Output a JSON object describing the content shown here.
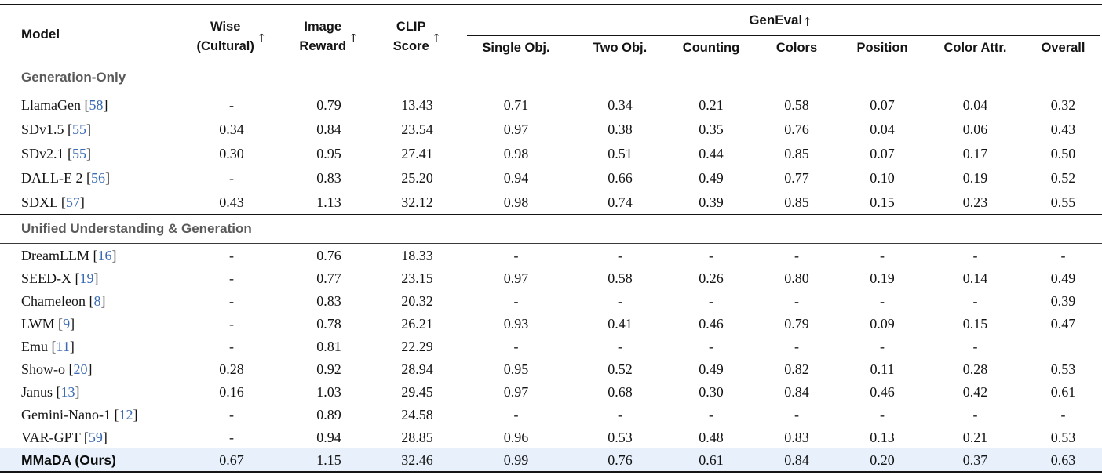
{
  "table": {
    "citation_brackets": [
      "[",
      "]"
    ],
    "header": {
      "model": "Model",
      "metrics": [
        {
          "line1": "Wise",
          "line2": "(Cultural)",
          "arrow": "↑"
        },
        {
          "line1": "Image",
          "line2": "Reward",
          "arrow": "↑"
        },
        {
          "line1": "CLIP",
          "line2": "Score",
          "arrow": "↑"
        }
      ],
      "group": {
        "label": "GenEval",
        "arrow": "↑"
      },
      "subcolumns": [
        "Single Obj.",
        "Two Obj.",
        "Counting",
        "Colors",
        "Position",
        "Color Attr.",
        "Overall"
      ]
    },
    "sections": [
      {
        "title": "Generation-Only",
        "rows": [
          {
            "model": "LlamaGen",
            "citation": "58",
            "values": [
              "-",
              "0.79",
              "13.43",
              "0.71",
              "0.34",
              "0.21",
              "0.58",
              "0.07",
              "0.04",
              "0.32"
            ]
          },
          {
            "model": "SDv1.5",
            "citation": "55",
            "values": [
              "0.34",
              "0.84",
              "23.54",
              "0.97",
              "0.38",
              "0.35",
              "0.76",
              "0.04",
              "0.06",
              "0.43"
            ]
          },
          {
            "model": "SDv2.1",
            "citation": "55",
            "values": [
              "0.30",
              "0.95",
              "27.41",
              "0.98",
              "0.51",
              "0.44",
              "0.85",
              "0.07",
              "0.17",
              "0.50"
            ]
          },
          {
            "model": "DALL-E 2",
            "citation": "56",
            "values": [
              "-",
              "0.83",
              "25.20",
              "0.94",
              "0.66",
              "0.49",
              "0.77",
              "0.10",
              "0.19",
              "0.52"
            ]
          },
          {
            "model": "SDXL",
            "citation": "57",
            "values": [
              "0.43",
              "1.13",
              "32.12",
              "0.98",
              "0.74",
              "0.39",
              "0.85",
              "0.15",
              "0.23",
              "0.55"
            ]
          }
        ]
      },
      {
        "title": "Unified Understanding & Generation",
        "rows": [
          {
            "model": "DreamLLM",
            "citation": "16",
            "values": [
              "-",
              "0.76",
              "18.33",
              "-",
              "-",
              "-",
              "-",
              "-",
              "-",
              "-"
            ]
          },
          {
            "model": "SEED-X",
            "citation": "19",
            "values": [
              "-",
              "0.77",
              "23.15",
              "0.97",
              "0.58",
              "0.26",
              "0.80",
              "0.19",
              "0.14",
              "0.49"
            ]
          },
          {
            "model": "Chameleon",
            "citation": "8",
            "values": [
              "-",
              "0.83",
              "20.32",
              "-",
              "-",
              "-",
              "-",
              "-",
              "-",
              "0.39"
            ]
          },
          {
            "model": "LWM",
            "citation": "9",
            "values": [
              "-",
              "0.78",
              "26.21",
              "0.93",
              "0.41",
              "0.46",
              "0.79",
              "0.09",
              "0.15",
              "0.47"
            ]
          },
          {
            "model": "Emu",
            "citation": "11",
            "values": [
              "-",
              "0.81",
              "22.29",
              "-",
              "-",
              "-",
              "-",
              "-",
              "-",
              ""
            ]
          },
          {
            "model": "Show-o",
            "citation": "20",
            "values": [
              "0.28",
              "0.92",
              "28.94",
              "0.95",
              "0.52",
              "0.49",
              "0.82",
              "0.11",
              "0.28",
              "0.53"
            ]
          },
          {
            "model": "Janus",
            "citation": "13",
            "values": [
              "0.16",
              "1.03",
              "29.45",
              "0.97",
              "0.68",
              "0.30",
              "0.84",
              "0.46",
              "0.42",
              "0.61"
            ]
          },
          {
            "model": "Gemini-Nano-1",
            "citation": "12",
            "values": [
              "-",
              "0.89",
              "24.58",
              "-",
              "-",
              "-",
              "-",
              "-",
              "-",
              "-"
            ]
          },
          {
            "model": "VAR-GPT",
            "citation": "59",
            "values": [
              "-",
              "0.94",
              "28.85",
              "0.96",
              "0.53",
              "0.48",
              "0.83",
              "0.13",
              "0.21",
              "0.53"
            ]
          },
          {
            "model": "MMaDA (Ours)",
            "citation": null,
            "highlight": true,
            "bold": true,
            "values": [
              "0.67",
              "1.15",
              "32.46",
              "0.99",
              "0.76",
              "0.61",
              "0.84",
              "0.20",
              "0.37",
              "0.63"
            ]
          }
        ]
      }
    ]
  },
  "colors": {
    "citation": "#3b6bb5",
    "highlight_row": "#e8f1fb",
    "section_title": "#5a5a5a"
  }
}
